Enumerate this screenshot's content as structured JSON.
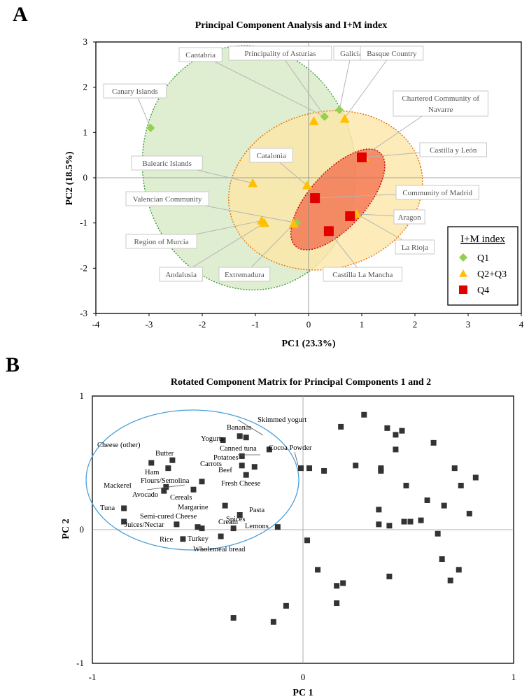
{
  "panel_a": {
    "letter": "A"
  },
  "panel_b": {
    "letter": "B"
  },
  "chart_data": [
    {
      "type": "scatter",
      "title": "Principal Component Analysis and I+M index",
      "xlabel": "PC1 (23.3%)",
      "ylabel": "PC2 (18.5%)",
      "xlim": [
        -4,
        4
      ],
      "ylim": [
        -3,
        3
      ],
      "xticks": [
        -4,
        -3,
        -2,
        -1,
        0,
        1,
        2,
        3,
        4
      ],
      "yticks": [
        -3,
        -2,
        -1,
        0,
        1,
        2,
        3
      ],
      "grid": false,
      "legend_title": "I+M index",
      "legend_position": "bottom-right",
      "series": [
        {
          "name": "Q1",
          "marker": "diamond",
          "color": "#92D050",
          "points": [
            [
              -2.97,
              1.1
            ],
            [
              0.3,
              1.35
            ],
            [
              0.58,
              1.5
            ],
            [
              -0.22,
              -1.0
            ]
          ]
        },
        {
          "name": "Q2+Q3",
          "marker": "triangle",
          "color": "#FFC000",
          "points": [
            [
              0.1,
              1.25
            ],
            [
              0.68,
              1.3
            ],
            [
              -1.05,
              -0.12
            ],
            [
              -0.03,
              -0.17
            ],
            [
              -0.88,
              -0.95
            ],
            [
              -0.83,
              -1.0
            ],
            [
              -0.28,
              -1.02
            ],
            [
              0.9,
              -0.8
            ],
            [
              1.05,
              0.45
            ]
          ]
        },
        {
          "name": "Q4",
          "marker": "square",
          "color": "#E00000",
          "points": [
            [
              0.12,
              -0.45
            ],
            [
              0.78,
              -0.85
            ],
            [
              0.38,
              -1.18
            ],
            [
              1.0,
              0.45
            ]
          ]
        }
      ],
      "annotations": [
        "Cantabria",
        "Principality of Asturias",
        "Galicia",
        "Basque Country",
        "Canary Islands",
        "Chartered Community of Navarre",
        "Castilla y León",
        "Balearic Islands",
        "Catalonia",
        "Valencian Community",
        "Community of Madrid",
        "Aragon",
        "Region of Murcia",
        "La Rioja",
        "Andalusia",
        "Extremadura",
        "Castilla La Mancha"
      ],
      "ellipses": [
        "Q1",
        "Q2+Q3",
        "Q4"
      ]
    },
    {
      "type": "scatter",
      "title": "Rotated Component Matrix for Principal Components 1 and 2",
      "xlabel": "PC 1",
      "ylabel": "PC 2",
      "xlim": [
        -1,
        1
      ],
      "ylim": [
        -1,
        1
      ],
      "xticks": [
        -1,
        0,
        1
      ],
      "yticks": [
        -1,
        0,
        1
      ],
      "grid": false,
      "series": [
        {
          "marker": "square",
          "color": "#333333",
          "points": [
            [
              -0.72,
              0.5
            ],
            [
              -0.62,
              0.52
            ],
            [
              -0.64,
              0.46
            ],
            [
              -0.65,
              0.32
            ],
            [
              -0.66,
              0.29
            ],
            [
              -0.52,
              0.3
            ],
            [
              -0.48,
              0.36
            ],
            [
              -0.85,
              0.16
            ],
            [
              -0.85,
              0.06
            ],
            [
              -0.6,
              0.04
            ],
            [
              -0.5,
              0.02
            ],
            [
              -0.48,
              0.01
            ],
            [
              -0.57,
              -0.07
            ],
            [
              -0.39,
              -0.05
            ],
            [
              -0.37,
              0.18
            ],
            [
              -0.3,
              0.11
            ],
            [
              -0.33,
              0.01
            ],
            [
              -0.27,
              0.41
            ],
            [
              -0.23,
              0.47
            ],
            [
              -0.29,
              0.48
            ],
            [
              -0.29,
              0.55
            ],
            [
              -0.3,
              0.7
            ],
            [
              -0.38,
              0.67
            ],
            [
              -0.27,
              0.69
            ],
            [
              -0.16,
              0.6
            ],
            [
              -0.12,
              0.02
            ],
            [
              -0.01,
              0.46
            ],
            [
              0.03,
              0.46
            ],
            [
              0.1,
              0.44
            ],
            [
              0.18,
              0.77
            ],
            [
              0.25,
              0.48
            ],
            [
              0.29,
              0.86
            ],
            [
              0.4,
              0.76
            ],
            [
              0.44,
              0.71
            ],
            [
              0.47,
              0.74
            ],
            [
              0.44,
              0.6
            ],
            [
              0.37,
              0.45
            ],
            [
              0.37,
              0.46
            ],
            [
              0.37,
              0.44
            ],
            [
              0.49,
              0.33
            ],
            [
              0.36,
              0.15
            ],
            [
              0.36,
              0.04
            ],
            [
              0.41,
              0.03
            ],
            [
              0.48,
              0.06
            ],
            [
              0.51,
              0.06
            ],
            [
              0.56,
              0.07
            ],
            [
              0.59,
              0.22
            ],
            [
              0.62,
              0.65
            ],
            [
              0.64,
              -0.03
            ],
            [
              0.66,
              -0.22
            ],
            [
              0.67,
              0.18
            ],
            [
              0.72,
              0.46
            ],
            [
              0.75,
              0.33
            ],
            [
              0.79,
              0.12
            ],
            [
              0.82,
              0.39
            ],
            [
              0.74,
              -0.3
            ],
            [
              0.7,
              -0.38
            ],
            [
              0.41,
              -0.35
            ],
            [
              0.19,
              -0.4
            ],
            [
              0.16,
              -0.42
            ],
            [
              0.16,
              -0.55
            ],
            [
              0.07,
              -0.3
            ],
            [
              0.02,
              -0.08
            ],
            [
              -0.08,
              -0.57
            ],
            [
              -0.14,
              -0.69
            ],
            [
              -0.33,
              -0.66
            ]
          ]
        }
      ],
      "annotations": [
        "Skimmed yogurt",
        "Bananas",
        "Yogurts",
        "Canned tuna",
        "Cocoa Powder",
        "Potatoes",
        "Carrots",
        "Beef",
        "Cheese (other)",
        "Butter",
        "Ham",
        "Flours/Semolina",
        "Mackerel",
        "Avocado",
        "Cereals",
        "Fresh Cheese",
        "Margarine",
        "Spices",
        "Semi-cured Cheese",
        "Pasta",
        "Tuna",
        "Juices/Nectar",
        "Cream",
        "Lemons",
        "Rice",
        "Turkey",
        "Wholemeal bread"
      ]
    }
  ]
}
